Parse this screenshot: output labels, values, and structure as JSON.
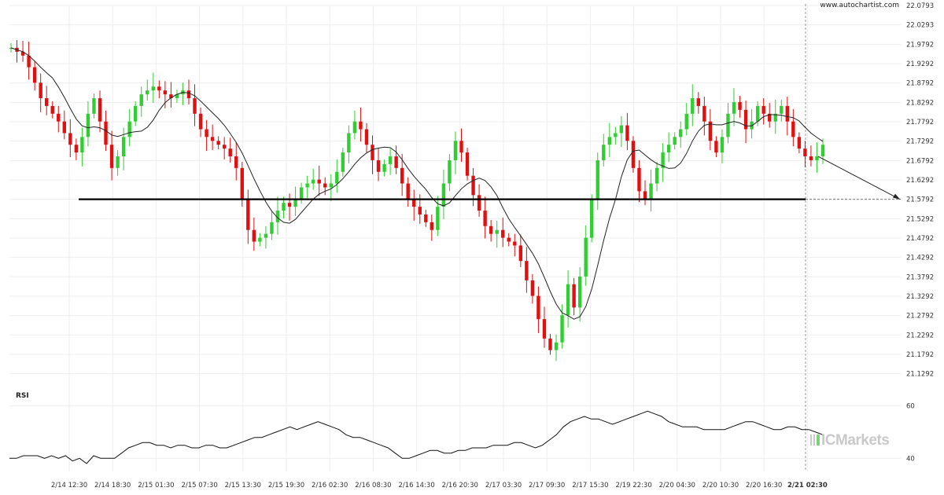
{
  "site": "www.autochartist.com",
  "indicator_label": "RSI",
  "watermark": "ICMarkets",
  "colors": {
    "up": "#32cd32",
    "down": "#e01010",
    "ma": "#222222",
    "level": "#000000",
    "grid": "#eeeeee"
  },
  "chart_data": [
    {
      "type": "candlestick",
      "title": "",
      "ylim": [
        21.1,
        22.0793
      ],
      "y_ticks": [
        "22.0793",
        "22.0293",
        "21.9792",
        "21.9292",
        "21.8792",
        "21.8292",
        "21.7792",
        "21.7292",
        "21.6792",
        "21.6292",
        "21.5792",
        "21.5292",
        "21.4792",
        "21.4292",
        "21.3792",
        "21.3292",
        "21.2792",
        "21.2292",
        "21.1792",
        "21.1292"
      ],
      "x_ticks": [
        "2/14 12:30",
        "2/14 18:30",
        "2/15 01:30",
        "2/15 07:30",
        "2/15 13:30",
        "2/15 19:30",
        "2/16 02:30",
        "2/16 08:30",
        "2/16 14:30",
        "2/16 20:30",
        "2/17 03:30",
        "2/17 09:30",
        "2/17 15:30",
        "2/19 22:30",
        "2/20 04:30",
        "2/20 10:30",
        "2/20 16:30",
        "2/21 02:30"
      ],
      "x_tick_highlight": "2/21 02:30",
      "support_level": 21.5792,
      "forecast_target": 21.5792,
      "close_series": [
        21.97,
        21.96,
        21.95,
        21.92,
        21.88,
        21.84,
        21.82,
        21.8,
        21.78,
        21.75,
        21.72,
        21.7,
        21.74,
        21.8,
        21.84,
        21.78,
        21.72,
        21.66,
        21.69,
        21.74,
        21.78,
        21.82,
        21.85,
        21.86,
        21.87,
        21.86,
        21.85,
        21.84,
        21.85,
        21.86,
        21.84,
        21.8,
        21.76,
        21.74,
        21.73,
        21.72,
        21.71,
        21.69,
        21.66,
        21.58,
        21.5,
        21.47,
        21.48,
        21.49,
        21.52,
        21.55,
        21.57,
        21.56,
        21.58,
        21.61,
        21.62,
        21.63,
        21.62,
        21.61,
        21.62,
        21.65,
        21.7,
        21.75,
        21.78,
        21.76,
        21.72,
        21.68,
        21.65,
        21.67,
        21.69,
        21.66,
        21.62,
        21.58,
        21.56,
        21.54,
        21.52,
        21.5,
        21.56,
        21.62,
        21.68,
        21.73,
        21.7,
        21.64,
        21.59,
        21.55,
        21.51,
        21.49,
        21.5,
        21.48,
        21.47,
        21.46,
        21.42,
        21.37,
        21.33,
        21.27,
        21.22,
        21.19,
        21.21,
        21.28,
        21.36,
        21.3,
        21.38,
        21.48,
        21.58,
        21.68,
        21.72,
        21.74,
        21.75,
        21.77,
        21.73,
        21.66,
        21.6,
        21.58,
        21.62,
        21.66,
        21.7,
        21.72,
        21.74,
        21.76,
        21.8,
        21.84,
        21.82,
        21.78,
        21.73,
        21.7,
        21.74,
        21.8,
        21.83,
        21.81,
        21.76,
        21.78,
        21.82,
        21.8,
        21.78,
        21.8,
        21.82,
        21.78,
        21.74,
        21.71,
        21.69,
        21.68,
        21.69,
        21.72
      ]
    },
    {
      "type": "line",
      "name": "RSI",
      "ylim": [
        35,
        65
      ],
      "y_ticks": [
        "60",
        "40"
      ],
      "values": [
        40,
        40,
        41,
        41,
        41,
        40,
        41,
        40,
        41,
        39,
        40,
        38,
        41,
        40,
        40,
        40,
        42,
        44,
        45,
        46,
        46,
        45,
        45,
        44,
        45,
        45,
        44,
        44,
        45,
        45,
        44,
        44,
        45,
        46,
        47,
        48,
        48,
        49,
        50,
        51,
        52,
        51,
        52,
        53,
        54,
        53,
        52,
        51,
        49,
        48,
        48,
        47,
        46,
        45,
        44,
        42,
        40,
        40,
        41,
        42,
        43,
        43,
        42,
        42,
        43,
        43,
        44,
        44,
        44,
        45,
        45,
        45,
        46,
        46,
        45,
        44,
        45,
        47,
        49,
        52,
        54,
        55,
        56,
        55,
        55,
        54,
        53,
        54,
        55,
        56,
        57,
        58,
        57,
        56,
        54,
        53,
        52,
        52,
        52,
        51,
        51,
        51,
        51,
        52,
        53,
        54,
        54,
        53,
        52,
        51,
        51,
        52,
        52,
        51,
        51,
        50,
        49
      ]
    }
  ]
}
